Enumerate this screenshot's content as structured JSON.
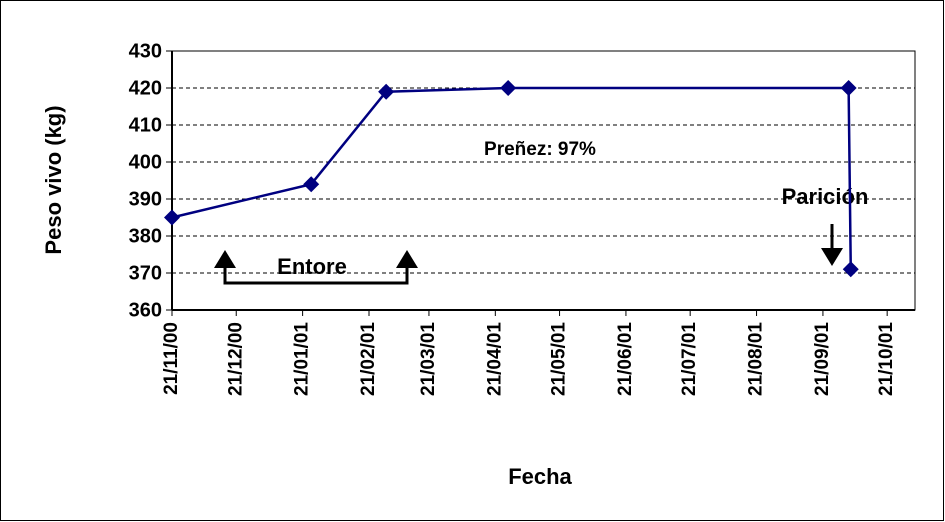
{
  "chart_data": {
    "type": "line",
    "x_label": "Fecha",
    "y_label": "Peso vivo (kg)",
    "x": [
      "2000-11-21",
      "2001-01-25",
      "2001-03-01",
      "2001-04-27",
      "2001-10-03",
      "2001-10-04"
    ],
    "series": [
      {
        "name": "Peso vivo",
        "color": "#000080",
        "values": [
          385,
          394,
          419,
          420,
          420,
          371
        ]
      }
    ],
    "xlim": [
      "2000-11-21",
      "2001-11-03"
    ],
    "xticks": [
      {
        "value": "2000-11-21",
        "label": "21/11/00"
      },
      {
        "value": "2000-12-21",
        "label": "21/12/00"
      },
      {
        "value": "2001-01-21",
        "label": "21/01/01"
      },
      {
        "value": "2001-02-21",
        "label": "21/02/01"
      },
      {
        "value": "2001-03-21",
        "label": "21/03/01"
      },
      {
        "value": "2001-04-21",
        "label": "21/04/01"
      },
      {
        "value": "2001-05-21",
        "label": "21/05/01"
      },
      {
        "value": "2001-06-21",
        "label": "21/06/01"
      },
      {
        "value": "2001-07-21",
        "label": "21/07/01"
      },
      {
        "value": "2001-08-21",
        "label": "21/08/01"
      },
      {
        "value": "2001-09-21",
        "label": "21/09/01"
      },
      {
        "value": "2001-10-21",
        "label": "21/10/01"
      }
    ],
    "ylim": [
      360,
      430
    ],
    "yticks": [
      360,
      370,
      380,
      390,
      400,
      410,
      420,
      430
    ],
    "grid": true,
    "annotations": [
      "Preñez: 97%",
      "Parición",
      "Entore"
    ]
  }
}
